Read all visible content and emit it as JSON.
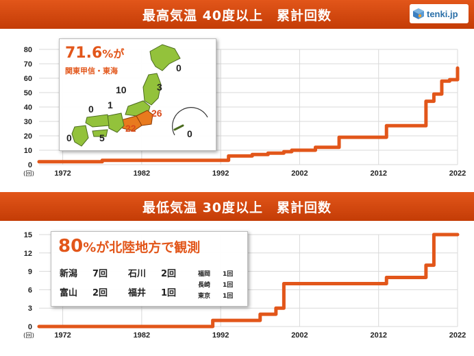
{
  "header": {
    "logo_text": "tenki.jp"
  },
  "chart_data": [
    {
      "type": "line",
      "title": "最高気温 40度以上　累計回数",
      "ylabel_unit": "(回)",
      "ylim": [
        0,
        80
      ],
      "yticks": [
        "0",
        "10",
        "20",
        "30",
        "40",
        "50",
        "60",
        "70",
        "80"
      ],
      "xlim": [
        1969,
        2022
      ],
      "xticks": [
        "1972",
        "1982",
        "1992",
        "2002",
        "2012",
        "2022"
      ],
      "line_color": "#e2561a",
      "grid": true,
      "x": [
        1969,
        1976,
        1977,
        1992,
        1993,
        1995,
        1996,
        1998,
        1999,
        2000,
        2001,
        2003,
        2004,
        2006,
        2007,
        2010,
        2011,
        2013,
        2014,
        2017,
        2018,
        2019,
        2020,
        2021,
        2022
      ],
      "values": [
        2,
        2,
        3,
        3,
        6,
        6,
        7,
        8,
        8,
        9,
        10,
        10,
        12,
        12,
        19,
        19,
        19,
        27,
        27,
        27,
        44,
        49,
        58,
        59,
        67
      ],
      "annotation": {
        "headline_pct": "71.6",
        "headline_suffix": "%が",
        "headline_sub": "関東甲信・東海",
        "region_counts": [
          {
            "label": "0",
            "region": "hokkaido"
          },
          {
            "label": "3",
            "region": "tohoku"
          },
          {
            "label": "10",
            "region": "hokuriku"
          },
          {
            "label": "1",
            "region": "kinki-north"
          },
          {
            "label": "0",
            "region": "chugoku"
          },
          {
            "label": "26",
            "region": "kanto-koshin"
          },
          {
            "label": "22",
            "region": "tokai"
          },
          {
            "label": "5",
            "region": "shikoku"
          },
          {
            "label": "0",
            "region": "kyushu"
          },
          {
            "label": "0",
            "region": "okinawa"
          }
        ]
      }
    },
    {
      "type": "line",
      "title": "最低気温 30度以上　累計回数",
      "ylabel_unit": "(回)",
      "ylim": [
        0,
        15
      ],
      "yticks": [
        "0",
        "3",
        "6",
        "9",
        "12",
        "15"
      ],
      "xlim": [
        1969,
        2022
      ],
      "xticks": [
        "1972",
        "1982",
        "1992",
        "2002",
        "2012",
        "2022"
      ],
      "line_color": "#e2561a",
      "grid": true,
      "x": [
        1969,
        1990,
        1991,
        1996,
        1997,
        1998,
        1999,
        2000,
        2012,
        2013,
        2016,
        2018,
        2019,
        2022
      ],
      "values": [
        0,
        0,
        1,
        1,
        2,
        2,
        3,
        7,
        7,
        8,
        8,
        10,
        15,
        15
      ],
      "annotation": {
        "headline_pct": "80",
        "headline_suffix": "%が北陸地方で観測",
        "stats": [
          {
            "name": "新潟",
            "value": "7回"
          },
          {
            "name": "石川",
            "value": "2回"
          },
          {
            "name": "富山",
            "value": "2回"
          },
          {
            "name": "福井",
            "value": "1回"
          }
        ],
        "small_stats": [
          {
            "name": "福岡",
            "value": "1回"
          },
          {
            "name": "長崎",
            "value": "1回"
          },
          {
            "name": "東京",
            "value": "1回"
          }
        ]
      }
    }
  ]
}
